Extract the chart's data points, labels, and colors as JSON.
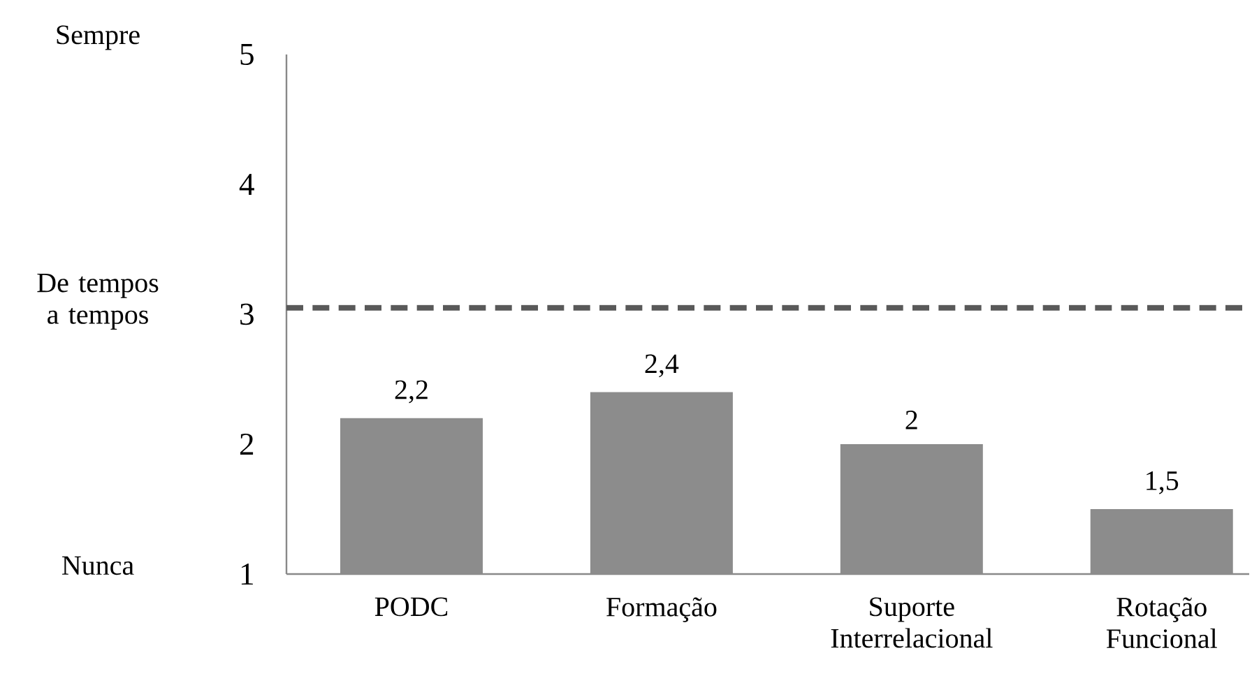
{
  "chart_data": {
    "type": "bar",
    "categories": [
      "PODC",
      "Formação",
      "Suporte Interrelacional",
      "Rotação Funcional"
    ],
    "values": [
      2.2,
      2.4,
      2,
      1.5
    ],
    "value_labels": [
      "2,2",
      "2,4",
      "2",
      "1,5"
    ],
    "color": "#8c8c8c",
    "ylim": [
      1,
      5
    ],
    "yticks": [
      1,
      2,
      3,
      4,
      5
    ],
    "annotations": [
      "Sempre",
      "De tempos a tempos",
      "Nunca"
    ],
    "ref_lines": [
      {
        "axis": "y",
        "value": 3.05,
        "color": "#595959",
        "line_style": "dashed"
      }
    ],
    "grid": false
  }
}
